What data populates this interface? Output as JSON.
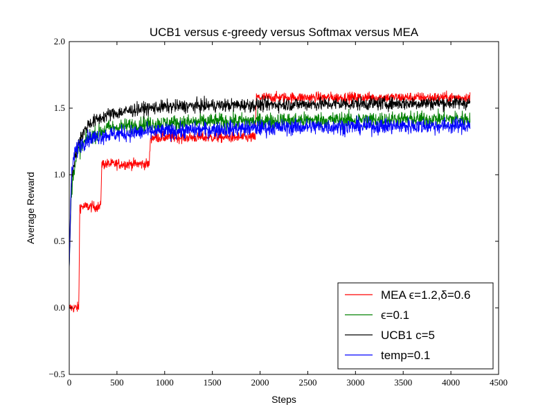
{
  "chart_data": {
    "type": "line",
    "title": "UCB1 versus ϵ-greedy versus Softmax versus MEA",
    "xlabel": "Steps",
    "ylabel": "Average Reward",
    "xlim": [
      0,
      4500
    ],
    "ylim": [
      -0.5,
      2.0
    ],
    "xticks": [
      0,
      500,
      1000,
      1500,
      2000,
      2500,
      3000,
      3500,
      4000,
      4500
    ],
    "xtick_labels": [
      "0",
      "500",
      "1000",
      "1500",
      "2000",
      "2500",
      "3000",
      "3500",
      "4000",
      "4500"
    ],
    "yticks": [
      -0.5,
      0.0,
      0.5,
      1.0,
      1.5,
      2.0
    ],
    "ytick_labels": [
      "−0.5",
      "0.0",
      "0.5",
      "1.0",
      "1.5",
      "2.0"
    ],
    "grid": false,
    "legend_position": "bottom-right",
    "series": [
      {
        "name": "MEA ϵ=1.2,δ=0.6",
        "color": "#ff0000",
        "noise": 0.02,
        "points": [
          [
            0,
            0.0
          ],
          [
            100,
            0.0
          ],
          [
            110,
            0.76
          ],
          [
            330,
            0.76
          ],
          [
            340,
            1.08
          ],
          [
            840,
            1.08
          ],
          [
            850,
            1.28
          ],
          [
            1950,
            1.28
          ],
          [
            1960,
            1.58
          ],
          [
            4200,
            1.58
          ]
        ]
      },
      {
        "name": "ϵ=0.1",
        "color": "#008000",
        "noise": 0.03,
        "points": [
          [
            0,
            0.3
          ],
          [
            20,
            0.85
          ],
          [
            50,
            1.05
          ],
          [
            100,
            1.18
          ],
          [
            200,
            1.28
          ],
          [
            400,
            1.35
          ],
          [
            800,
            1.38
          ],
          [
            1500,
            1.4
          ],
          [
            2500,
            1.41
          ],
          [
            4200,
            1.42
          ]
        ]
      },
      {
        "name": "UCB1 c=5",
        "color": "#000000",
        "noise": 0.025,
        "points": [
          [
            0,
            0.3
          ],
          [
            20,
            0.9
          ],
          [
            50,
            1.1
          ],
          [
            100,
            1.25
          ],
          [
            200,
            1.38
          ],
          [
            400,
            1.45
          ],
          [
            700,
            1.49
          ],
          [
            1000,
            1.51
          ],
          [
            1500,
            1.52
          ],
          [
            2500,
            1.53
          ],
          [
            4200,
            1.54
          ]
        ]
      },
      {
        "name": "temp=0.1",
        "color": "#0000ff",
        "noise": 0.03,
        "points": [
          [
            0,
            0.3
          ],
          [
            20,
            0.95
          ],
          [
            50,
            1.15
          ],
          [
            100,
            1.22
          ],
          [
            200,
            1.27
          ],
          [
            400,
            1.3
          ],
          [
            800,
            1.32
          ],
          [
            1500,
            1.34
          ],
          [
            2500,
            1.36
          ],
          [
            4200,
            1.37
          ]
        ]
      }
    ]
  }
}
